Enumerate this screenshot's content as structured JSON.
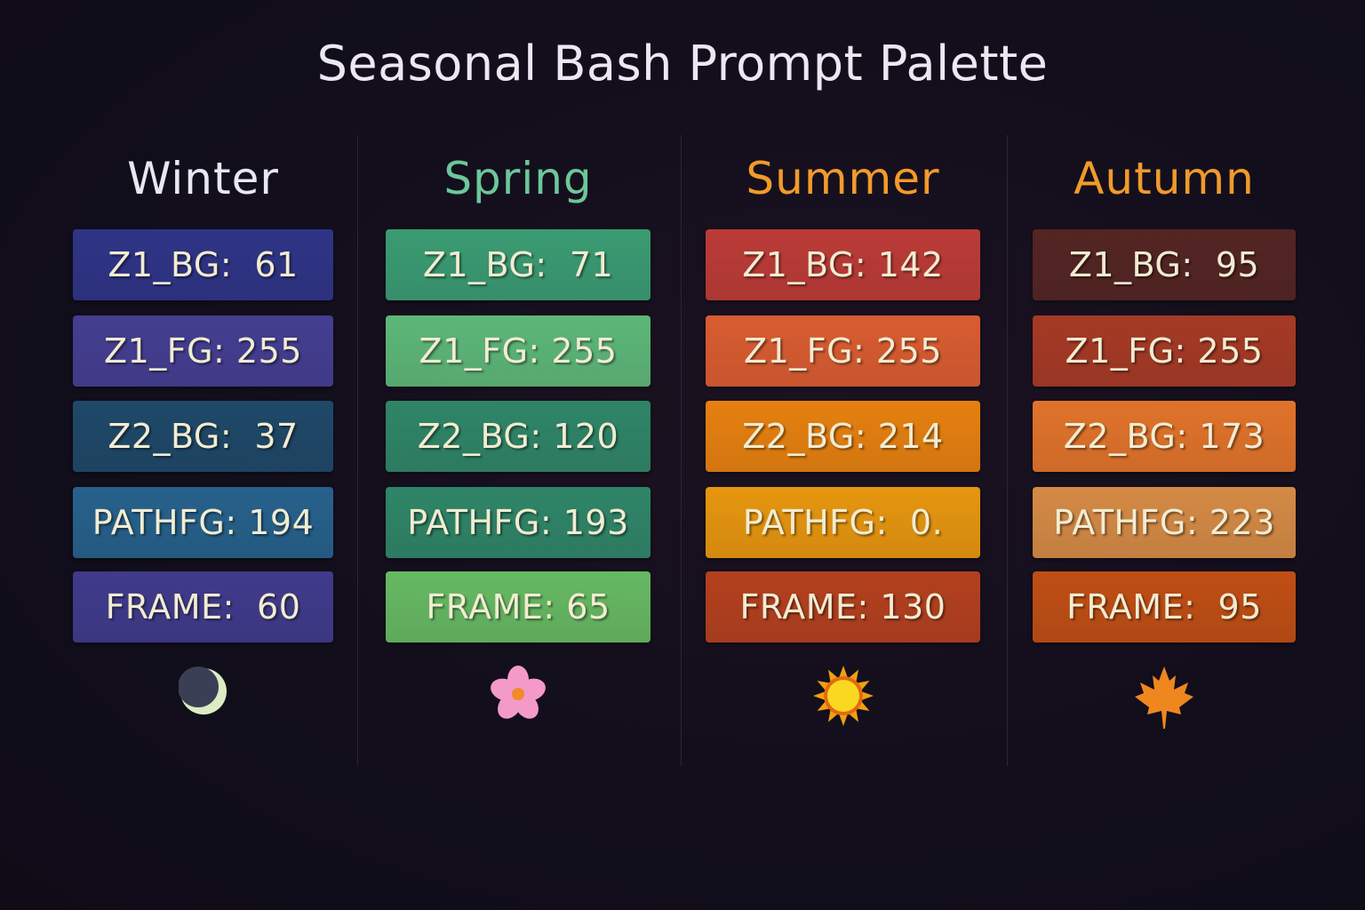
{
  "title": "Seasonal Bash Prompt Palette",
  "columns": [
    {
      "name": "Winter",
      "color": "#e8e8f0",
      "icon": "crescent-moon-icon",
      "items": [
        {
          "label": "Z1_BG:  61",
          "color": "#2f3486"
        },
        {
          "label": "Z1_FG: 255",
          "color": "#443e91"
        },
        {
          "label": "Z2_BG:  37",
          "color": "#1f4868"
        },
        {
          "label": "PATHFG: 194",
          "color": "#26618b"
        },
        {
          "label": "FRAME:  60",
          "color": "#3f3b8b"
        }
      ]
    },
    {
      "name": "Spring",
      "color": "#6cc79a",
      "icon": "cherry-blossom-icon",
      "items": [
        {
          "label": "Z1_BG:  71",
          "color": "#3a9b72"
        },
        {
          "label": "Z1_FG: 255",
          "color": "#5db778"
        },
        {
          "label": "Z2_BG: 120",
          "color": "#2f8567"
        },
        {
          "label": "PATHFG: 193",
          "color": "#2f8568"
        },
        {
          "label": "FRAME: 65",
          "color": "#66b962"
        }
      ]
    },
    {
      "name": "Summer",
      "color": "#f39a2a",
      "icon": "sun-icon",
      "items": [
        {
          "label": "Z1_BG: 142",
          "color": "#bb3b36"
        },
        {
          "label": "Z1_FG: 255",
          "color": "#d95c30"
        },
        {
          "label": "Z2_BG: 214",
          "color": "#e5800f"
        },
        {
          "label": "PATHFG:  0.",
          "color": "#e6960f"
        },
        {
          "label": "FRAME: 130",
          "color": "#b3401e"
        }
      ]
    },
    {
      "name": "Autumn",
      "color": "#f09a2a",
      "icon": "maple-leaf-icon",
      "items": [
        {
          "label": "Z1_BG:  95",
          "color": "#532523"
        },
        {
          "label": "Z1_FG: 255",
          "color": "#a53a25"
        },
        {
          "label": "Z2_BG: 173",
          "color": "#e0732a"
        },
        {
          "label": "PATHFG: 223",
          "color": "#d48a45"
        },
        {
          "label": "FRAME:  95",
          "color": "#bf4e14"
        }
      ]
    }
  ]
}
